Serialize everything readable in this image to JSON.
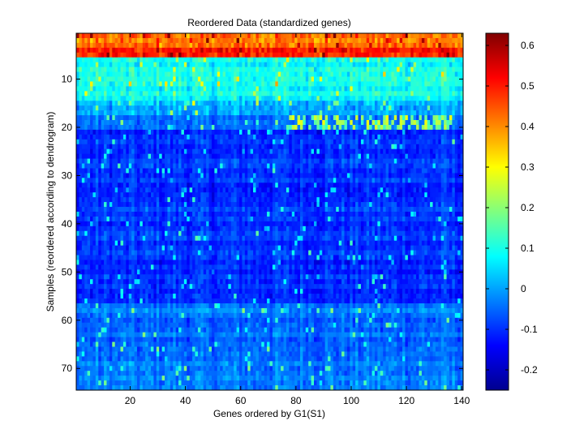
{
  "chart_data": {
    "type": "heatmap",
    "title": "Reordered Data (standardized genes)",
    "xlabel": "Genes ordered by G1(S1)",
    "ylabel": "Samples (reordered according to dendrogram)",
    "n_cols": 140,
    "n_rows": 74,
    "xlim": [
      0.5,
      140.5
    ],
    "ylim": [
      0.5,
      74.5
    ],
    "x_ticks": [
      20,
      40,
      60,
      80,
      100,
      120,
      140
    ],
    "y_ticks": [
      10,
      20,
      30,
      40,
      50,
      60,
      70
    ],
    "colormap": "jet",
    "clim": [
      -0.25,
      0.63
    ],
    "colorbar_ticks": [
      -0.2,
      -0.1,
      0,
      0.1,
      0.2,
      0.3,
      0.4,
      0.5,
      0.6
    ],
    "row_bands": [
      {
        "rows": [
          1,
          3
        ],
        "mean_value": 0.42
      },
      {
        "rows": [
          4,
          5
        ],
        "mean_value": 0.48
      },
      {
        "rows": [
          6,
          14
        ],
        "mean_value": 0.09
      },
      {
        "rows": [
          15,
          17
        ],
        "mean_value": 0.02
      },
      {
        "rows": [
          18,
          20
        ],
        "mean_value": -0.06
      },
      {
        "rows": [
          21,
          56
        ],
        "mean_value": -0.1
      },
      {
        "rows": [
          57,
          74
        ],
        "mean_value": -0.04
      }
    ],
    "highlight_block": {
      "rows": [
        18,
        20
      ],
      "cols": [
        78,
        136
      ],
      "value_range": [
        0.12,
        0.3
      ]
    }
  }
}
